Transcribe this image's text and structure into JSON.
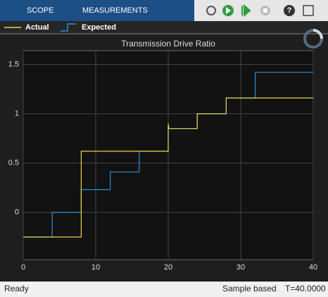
{
  "toolbar": {
    "tabs": [
      "SCOPE",
      "MEASUREMENTS"
    ]
  },
  "status": {
    "left": "Ready",
    "mode": "Sample based",
    "time": "T=40.0000"
  },
  "chart_data": {
    "type": "line",
    "title": "Transmission Drive Ratio",
    "series": [
      {
        "name": "Actual",
        "color": "#e8d34a",
        "x": [
          0,
          8,
          8,
          20,
          20,
          20.1,
          24,
          24,
          28,
          28,
          40
        ],
        "values": [
          -0.25,
          -0.25,
          0.62,
          0.62,
          0.9,
          0.85,
          0.85,
          1.0,
          1.0,
          1.16,
          1.16
        ]
      },
      {
        "name": "Expected",
        "color": "#2a8fd6",
        "x": [
          0,
          4,
          4,
          8,
          8,
          12,
          12,
          16,
          16,
          20,
          20,
          24,
          24,
          28,
          28,
          32,
          32,
          40
        ],
        "values": [
          -0.25,
          -0.25,
          0,
          0,
          0.23,
          0.23,
          0.41,
          0.41,
          0.62,
          0.62,
          0.85,
          0.85,
          1.0,
          1.0,
          1.16,
          1.16,
          1.42,
          1.42
        ]
      }
    ],
    "xlim": [
      0,
      40
    ],
    "xticks": [
      0,
      10,
      20,
      30,
      40
    ],
    "ylim": [
      -0.48,
      1.64
    ],
    "yticks": [
      0,
      0.5,
      1,
      1.5
    ],
    "grid": true
  }
}
